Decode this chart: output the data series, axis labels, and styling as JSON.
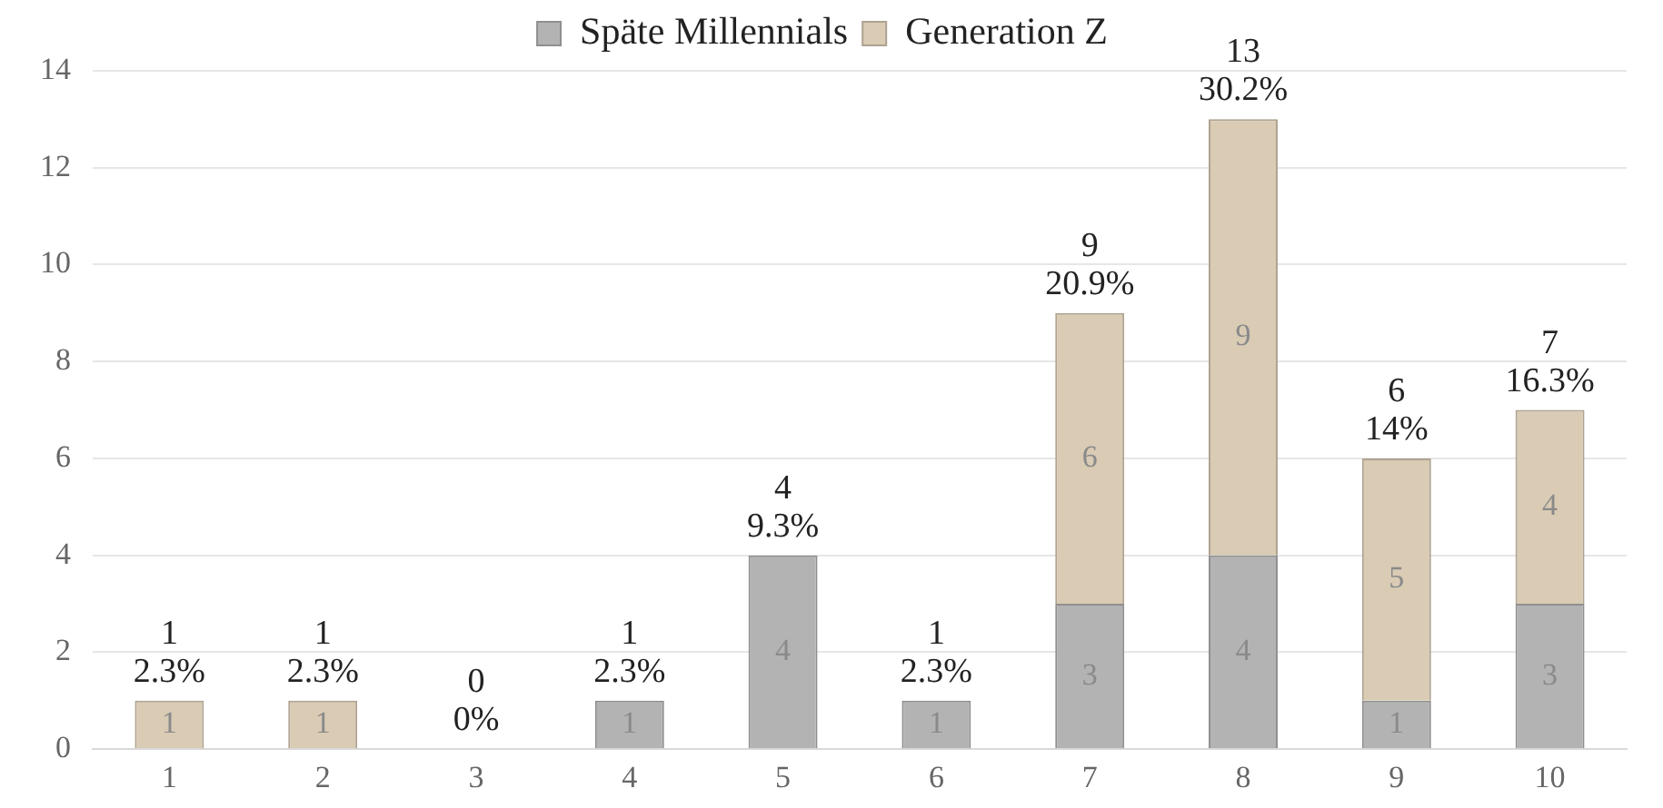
{
  "chart_data": {
    "type": "bar",
    "stacked": true,
    "categories": [
      "1",
      "2",
      "3",
      "4",
      "5",
      "6",
      "7",
      "8",
      "9",
      "10"
    ],
    "series": [
      {
        "name": "Späte Millennials",
        "color": "#b3b3b3",
        "values": [
          0,
          0,
          0,
          1,
          4,
          1,
          3,
          4,
          1,
          3
        ],
        "value_labels": [
          null,
          null,
          null,
          "1",
          "4",
          "1",
          "3",
          "4",
          "1",
          "3"
        ]
      },
      {
        "name": "Generation Z",
        "color": "#d9cbb4",
        "values": [
          1,
          1,
          0,
          0,
          0,
          0,
          6,
          9,
          5,
          4
        ],
        "value_labels": [
          "1",
          "1",
          null,
          null,
          null,
          null,
          "6",
          "9",
          "5",
          "4"
        ]
      }
    ],
    "totals": [
      "1\n2.3%",
      "1\n2.3%",
      "0\n0%",
      "1\n2.3%",
      "4\n9.3%",
      "1\n2.3%",
      "9\n20.9%",
      "13\n30.2%",
      "6\n14%",
      "7\n16.3%"
    ],
    "ylim": [
      0,
      14
    ],
    "yticks": [
      0,
      2,
      4,
      6,
      8,
      10,
      12,
      14
    ],
    "grid": "y",
    "legend": "top"
  }
}
